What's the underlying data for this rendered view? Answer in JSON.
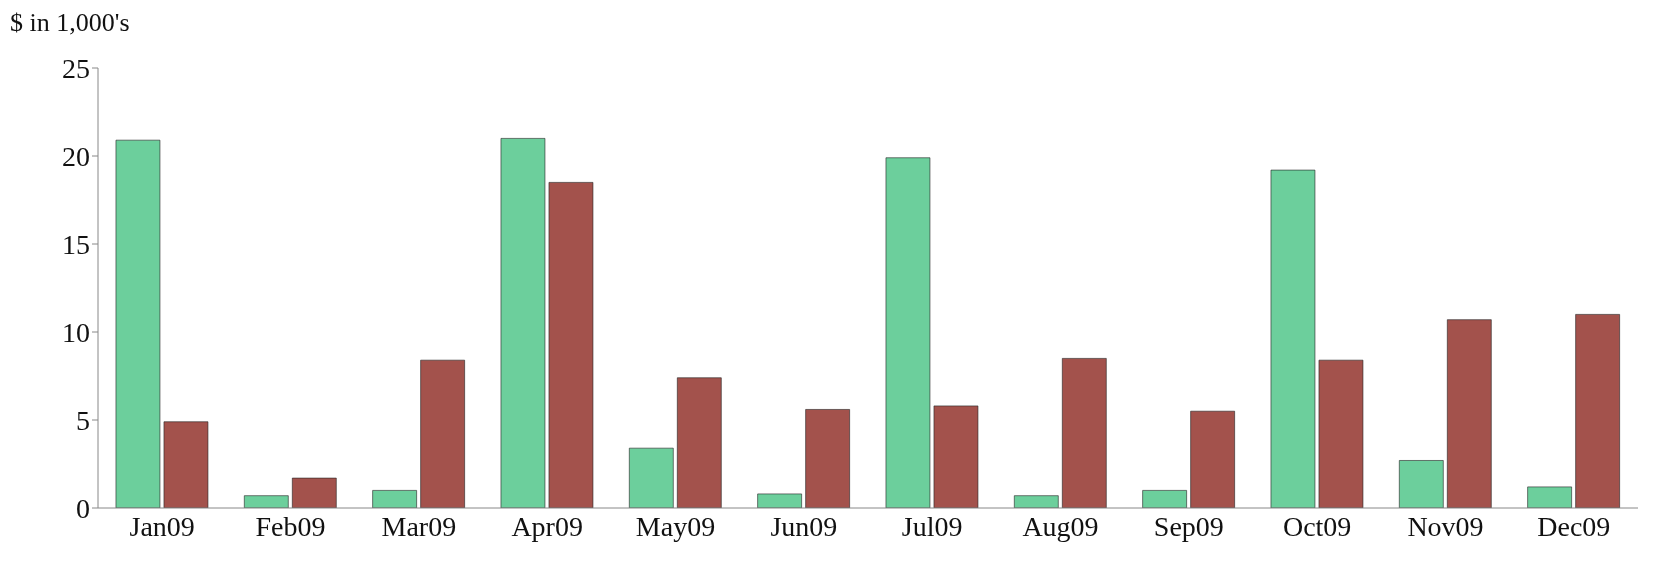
{
  "chart_data": {
    "type": "bar",
    "ylabel": "$ in 1,000's",
    "categories": [
      "Jan09",
      "Feb09",
      "Mar09",
      "Apr09",
      "May09",
      "Jun09",
      "Jul09",
      "Aug09",
      "Sep09",
      "Oct09",
      "Nov09",
      "Dec09"
    ],
    "series": [
      {
        "color": "#6ccf9c",
        "values": [
          20.9,
          0.7,
          1.0,
          21.0,
          3.4,
          0.8,
          19.9,
          0.7,
          1.0,
          19.2,
          2.7,
          1.2
        ]
      },
      {
        "color": "#a3524c",
        "values": [
          4.9,
          1.7,
          8.4,
          18.5,
          7.4,
          5.6,
          5.8,
          8.5,
          5.5,
          8.4,
          10.7,
          11.0
        ]
      }
    ],
    "ylim": [
      0,
      25
    ],
    "yticks": [
      0,
      5,
      10,
      15,
      20,
      25
    ],
    "grid": false,
    "legend": false
  }
}
